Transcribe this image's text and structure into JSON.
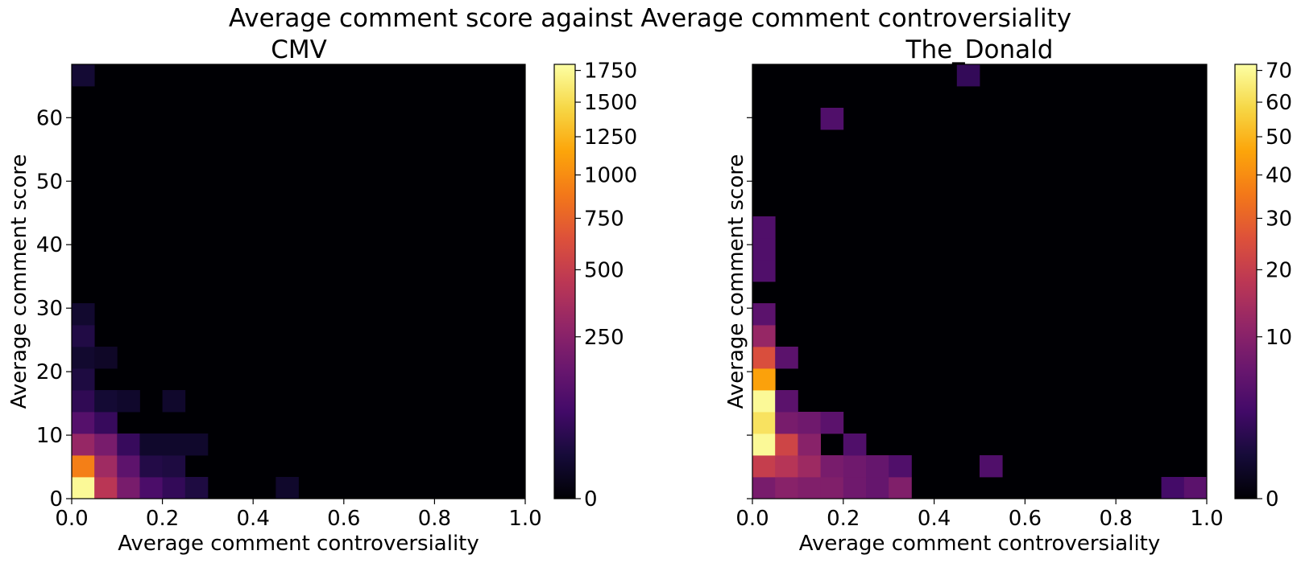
{
  "figure_title": "Average comment score against Average comment controversiality",
  "chart_data": [
    {
      "type": "heatmap",
      "title": "CMV",
      "xlabel": "Average comment controversiality",
      "ylabel": "Average comment score",
      "xlim": [
        0,
        1
      ],
      "ylim": [
        0,
        68.4
      ],
      "x_bins": 20,
      "y_bins": 20,
      "x_ticks": [
        0.0,
        0.2,
        0.4,
        0.6,
        0.8,
        1.0
      ],
      "x_tick_labels": [
        "0.0",
        "0.2",
        "0.4",
        "0.6",
        "0.8",
        "1.0"
      ],
      "y_ticks": [
        0,
        10,
        20,
        30,
        40,
        50,
        60
      ],
      "y_tick_labels": [
        "0",
        "10",
        "20",
        "30",
        "40",
        "50",
        "60"
      ],
      "y_tick_labels_visible": true,
      "colormap": "inferno",
      "color_scale": "power-0.5",
      "vmax": 1800,
      "colorbar_ticks": [
        0,
        250,
        500,
        750,
        1000,
        1250,
        1500,
        1750
      ],
      "colorbar_tick_labels": [
        "0",
        "250",
        "500",
        "750",
        "1000",
        "1250",
        "1500",
        "1750"
      ],
      "grid": false,
      "cells": [
        {
          "col": 0,
          "row": 0,
          "count": 1750
        },
        {
          "col": 1,
          "row": 0,
          "count": 440
        },
        {
          "col": 2,
          "row": 0,
          "count": 200
        },
        {
          "col": 3,
          "row": 0,
          "count": 90
        },
        {
          "col": 4,
          "row": 0,
          "count": 50
        },
        {
          "col": 5,
          "row": 0,
          "count": 25
        },
        {
          "col": 9,
          "row": 0,
          "count": 10
        },
        {
          "col": 0,
          "row": 1,
          "count": 920
        },
        {
          "col": 1,
          "row": 1,
          "count": 330
        },
        {
          "col": 2,
          "row": 1,
          "count": 130
        },
        {
          "col": 3,
          "row": 1,
          "count": 30
        },
        {
          "col": 4,
          "row": 1,
          "count": 25
        },
        {
          "col": 0,
          "row": 2,
          "count": 300
        },
        {
          "col": 1,
          "row": 2,
          "count": 200
        },
        {
          "col": 2,
          "row": 2,
          "count": 55
        },
        {
          "col": 3,
          "row": 2,
          "count": 10
        },
        {
          "col": 4,
          "row": 2,
          "count": 10
        },
        {
          "col": 5,
          "row": 2,
          "count": 10
        },
        {
          "col": 0,
          "row": 3,
          "count": 110
        },
        {
          "col": 1,
          "row": 3,
          "count": 55
        },
        {
          "col": 0,
          "row": 4,
          "count": 45
        },
        {
          "col": 1,
          "row": 4,
          "count": 15
        },
        {
          "col": 2,
          "row": 4,
          "count": 10
        },
        {
          "col": 4,
          "row": 4,
          "count": 10
        },
        {
          "col": 0,
          "row": 5,
          "count": 25
        },
        {
          "col": 0,
          "row": 6,
          "count": 12
        },
        {
          "col": 1,
          "row": 6,
          "count": 8
        },
        {
          "col": 0,
          "row": 7,
          "count": 28
        },
        {
          "col": 0,
          "row": 8,
          "count": 12
        },
        {
          "col": 0,
          "row": 19,
          "count": 15
        }
      ]
    },
    {
      "type": "heatmap",
      "title": "The_Donald",
      "xlabel": "Average comment controversiality",
      "ylabel": "Average comment score",
      "xlim": [
        0,
        1
      ],
      "ylim": [
        0,
        68.4
      ],
      "x_bins": 20,
      "y_bins": 20,
      "x_ticks": [
        0.0,
        0.2,
        0.4,
        0.6,
        0.8,
        1.0
      ],
      "x_tick_labels": [
        "0.0",
        "0.2",
        "0.4",
        "0.6",
        "0.8",
        "1.0"
      ],
      "y_ticks": [
        0,
        10,
        20,
        30,
        40,
        50,
        60
      ],
      "y_tick_labels": [
        "0",
        "10",
        "20",
        "30",
        "40",
        "50",
        "60"
      ],
      "y_tick_labels_visible": false,
      "colormap": "inferno",
      "color_scale": "power-0.5",
      "vmax": 72,
      "colorbar_ticks": [
        0,
        10,
        20,
        30,
        40,
        50,
        60,
        70
      ],
      "colorbar_tick_labels": [
        "0",
        "10",
        "20",
        "30",
        "40",
        "50",
        "60",
        "70"
      ],
      "grid": false,
      "cells": [
        {
          "col": 0,
          "row": 0,
          "count": 8
        },
        {
          "col": 1,
          "row": 0,
          "count": 10
        },
        {
          "col": 2,
          "row": 0,
          "count": 9
        },
        {
          "col": 3,
          "row": 0,
          "count": 9
        },
        {
          "col": 4,
          "row": 0,
          "count": 7
        },
        {
          "col": 5,
          "row": 0,
          "count": 6
        },
        {
          "col": 6,
          "row": 0,
          "count": 9
        },
        {
          "col": 18,
          "row": 0,
          "count": 3
        },
        {
          "col": 19,
          "row": 0,
          "count": 5
        },
        {
          "col": 0,
          "row": 1,
          "count": 20
        },
        {
          "col": 1,
          "row": 1,
          "count": 17
        },
        {
          "col": 2,
          "row": 1,
          "count": 13
        },
        {
          "col": 3,
          "row": 1,
          "count": 8
        },
        {
          "col": 4,
          "row": 1,
          "count": 7
        },
        {
          "col": 5,
          "row": 1,
          "count": 6
        },
        {
          "col": 6,
          "row": 1,
          "count": 4
        },
        {
          "col": 10,
          "row": 1,
          "count": 4
        },
        {
          "col": 0,
          "row": 2,
          "count": 70
        },
        {
          "col": 1,
          "row": 2,
          "count": 22
        },
        {
          "col": 2,
          "row": 2,
          "count": 10
        },
        {
          "col": 4,
          "row": 2,
          "count": 4
        },
        {
          "col": 0,
          "row": 3,
          "count": 62
        },
        {
          "col": 1,
          "row": 3,
          "count": 8
        },
        {
          "col": 2,
          "row": 3,
          "count": 7
        },
        {
          "col": 3,
          "row": 3,
          "count": 5
        },
        {
          "col": 0,
          "row": 4,
          "count": 70
        },
        {
          "col": 1,
          "row": 4,
          "count": 5
        },
        {
          "col": 0,
          "row": 5,
          "count": 45
        },
        {
          "col": 0,
          "row": 6,
          "count": 25
        },
        {
          "col": 1,
          "row": 6,
          "count": 5
        },
        {
          "col": 0,
          "row": 7,
          "count": 12
        },
        {
          "col": 0,
          "row": 8,
          "count": 5
        },
        {
          "col": 0,
          "row": 10,
          "count": 4
        },
        {
          "col": 0,
          "row": 11,
          "count": 4
        },
        {
          "col": 0,
          "row": 12,
          "count": 4
        },
        {
          "col": 3,
          "row": 17,
          "count": 4
        },
        {
          "col": 9,
          "row": 19,
          "count": 2
        }
      ]
    }
  ]
}
